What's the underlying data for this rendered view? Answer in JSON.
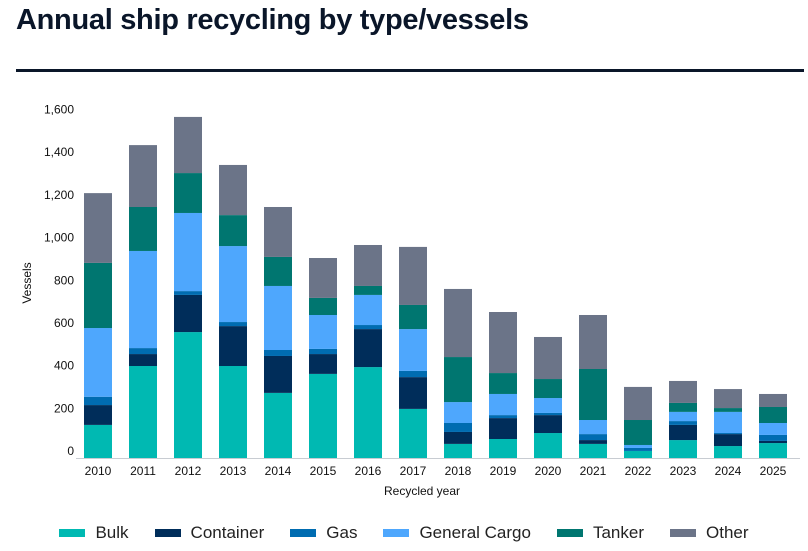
{
  "chart_data": {
    "type": "bar",
    "stacked": true,
    "title": "Annual ship recycling by type/vessels",
    "xlabel": "Recycled year",
    "ylabel": "Vessels",
    "ylim": [
      0,
      1600
    ],
    "yticks": [
      "0",
      "200",
      "400",
      "600",
      "800",
      "1,000",
      "1,200",
      "1,400",
      "1,600"
    ],
    "grid": false,
    "legend_position": "bottom",
    "categories": [
      "2010",
      "2011",
      "2012",
      "2013",
      "2014",
      "2015",
      "2016",
      "2017",
      "2018",
      "2019",
      "2020",
      "2021",
      "2022",
      "2023",
      "2024",
      "2025"
    ],
    "series": [
      {
        "name": "Bulk",
        "color": "#00b9b2",
        "values": [
          155,
          431,
          590,
          431,
          305,
          394,
          426,
          230,
          66,
          89,
          117,
          66,
          33,
          84,
          56,
          70
        ]
      },
      {
        "name": "Container",
        "color": "#002d5a",
        "values": [
          93,
          56,
          174,
          187,
          173,
          93,
          178,
          149,
          56,
          98,
          84,
          18,
          0,
          71,
          56,
          10
        ]
      },
      {
        "name": "Gas",
        "color": "#006cb1",
        "values": [
          39,
          28,
          18,
          19,
          28,
          24,
          19,
          29,
          42,
          14,
          10,
          28,
          14,
          18,
          5,
          28
        ]
      },
      {
        "name": "General Cargo",
        "color": "#4ea7fd",
        "values": [
          322,
          455,
          366,
          356,
          300,
          159,
          141,
          196,
          98,
          99,
          70,
          66,
          14,
          43,
          99,
          56
        ]
      },
      {
        "name": "Tanker",
        "color": "#007670",
        "values": [
          305,
          206,
          187,
          145,
          136,
          80,
          42,
          113,
          211,
          98,
          89,
          239,
          117,
          42,
          18,
          75
        ]
      },
      {
        "name": "Other",
        "color": "#6b7488",
        "values": [
          327,
          290,
          263,
          235,
          234,
          187,
          192,
          272,
          319,
          286,
          197,
          253,
          155,
          103,
          89,
          61
        ]
      }
    ]
  }
}
